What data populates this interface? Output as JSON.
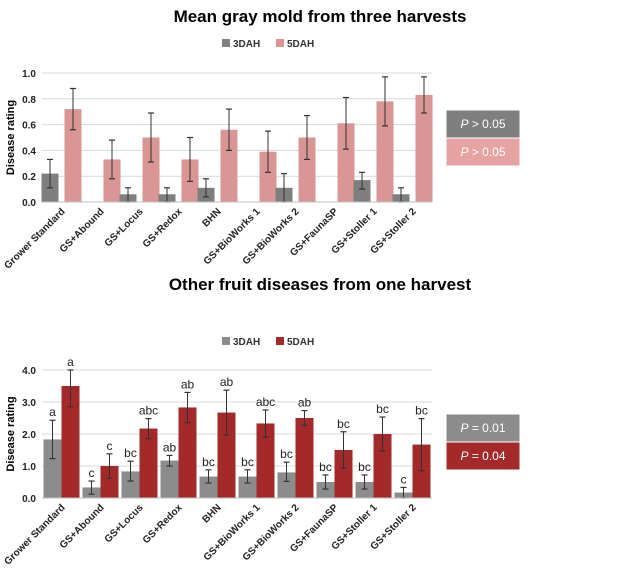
{
  "chart_data": [
    {
      "type": "bar",
      "title": "Mean gray mold from three harvests",
      "ylabel": "Disease rating",
      "xlabel": "",
      "ylim": [
        0,
        1.0
      ],
      "yticks": [
        "0.0",
        "0.2",
        "0.4",
        "0.6",
        "0.8",
        "1.0"
      ],
      "grid": true,
      "legend_placement": "top-center",
      "categories": [
        "Grower Standard",
        "GS+Abound",
        "GS+Locus",
        "GS+Redox",
        "BHN",
        "GS+BioWorks 1",
        "GS+BioWorks 2",
        "GS+FaunaSP",
        "GS+Stoller 1",
        "GS+Stoller 2"
      ],
      "series": [
        {
          "name": "3DAH",
          "color": "#7f7f7f",
          "values": [
            0.22,
            0,
            0.06,
            0.06,
            0.11,
            0,
            0.11,
            0,
            0.17,
            0.06
          ],
          "err_low": [
            0.11,
            null,
            0,
            0,
            0.04,
            null,
            0,
            null,
            0.1,
            0
          ],
          "err_high": [
            0.33,
            null,
            0.11,
            0.11,
            0.18,
            null,
            0.22,
            null,
            0.23,
            0.11
          ]
        },
        {
          "name": "5DAH",
          "color": "#d99694",
          "values": [
            0.72,
            0.33,
            0.5,
            0.33,
            0.56,
            0.39,
            0.5,
            0.61,
            0.78,
            0.83
          ],
          "err_low": [
            0.56,
            0.18,
            0.31,
            0.16,
            0.4,
            0.23,
            0.33,
            0.41,
            0.59,
            0.69
          ],
          "err_high": [
            0.88,
            0.48,
            0.69,
            0.5,
            0.72,
            0.55,
            0.67,
            0.81,
            0.97,
            0.97
          ]
        }
      ],
      "pvalues": [
        {
          "prefix": "P",
          "text": " > 0.05",
          "color": "#7f7f7f"
        },
        {
          "prefix": "P",
          "text": " > 0.05",
          "color": "#e6a3a1"
        }
      ]
    },
    {
      "type": "bar",
      "title": "Other fruit diseases from one harvest",
      "ylabel": "Disease rating",
      "xlabel": "",
      "ylim": [
        0,
        4.0
      ],
      "yticks": [
        "0.0",
        "1.0",
        "2.0",
        "3.0",
        "4.0"
      ],
      "grid": true,
      "legend_placement": "top-center",
      "categories": [
        "Grower Standard",
        "GS+Abound",
        "GS+Locus",
        "GS+Redox",
        "BHN",
        "GS+BioWorks 1",
        "GS+BioWorks 2",
        "GS+FaunaSP",
        "GS+Stoller 1",
        "GS+Stoller 2"
      ],
      "series": [
        {
          "name": "3DAH",
          "color": "#8c8c8c",
          "values": [
            1.83,
            0.33,
            0.83,
            1.17,
            0.67,
            0.67,
            0.8,
            0.5,
            0.5,
            0.17
          ],
          "err_low": [
            1.23,
            0.12,
            0.53,
            1.0,
            0.47,
            0.47,
            0.52,
            0.28,
            0.28,
            0
          ],
          "err_high": [
            2.43,
            0.53,
            1.15,
            1.33,
            0.88,
            0.88,
            1.12,
            0.72,
            0.72,
            0.33
          ],
          "letters": [
            "a",
            "c",
            "bc",
            "ab",
            "bc",
            "bc",
            "bc",
            "bc",
            "bc",
            "c"
          ]
        },
        {
          "name": "5DAH",
          "color": "#a3292b",
          "values": [
            3.5,
            1.0,
            2.17,
            2.83,
            2.67,
            2.33,
            2.5,
            1.5,
            2.0,
            1.67
          ],
          "err_low": [
            2.85,
            0.62,
            1.85,
            2.35,
            1.97,
            1.9,
            2.27,
            0.93,
            1.47,
            0.85
          ],
          "err_high": [
            4.0,
            1.38,
            2.48,
            3.3,
            3.37,
            2.75,
            2.73,
            2.07,
            2.53,
            2.48
          ],
          "letters": [
            "a",
            "c",
            "abc",
            "ab",
            "ab",
            "abc",
            "ab",
            "bc",
            "bc",
            "bc"
          ]
        }
      ],
      "pvalues": [
        {
          "prefix": "P",
          "text": " = 0.01",
          "color": "#8c8c8c"
        },
        {
          "prefix": "P",
          "text": " = 0.04",
          "color": "#a3292b"
        }
      ]
    }
  ]
}
